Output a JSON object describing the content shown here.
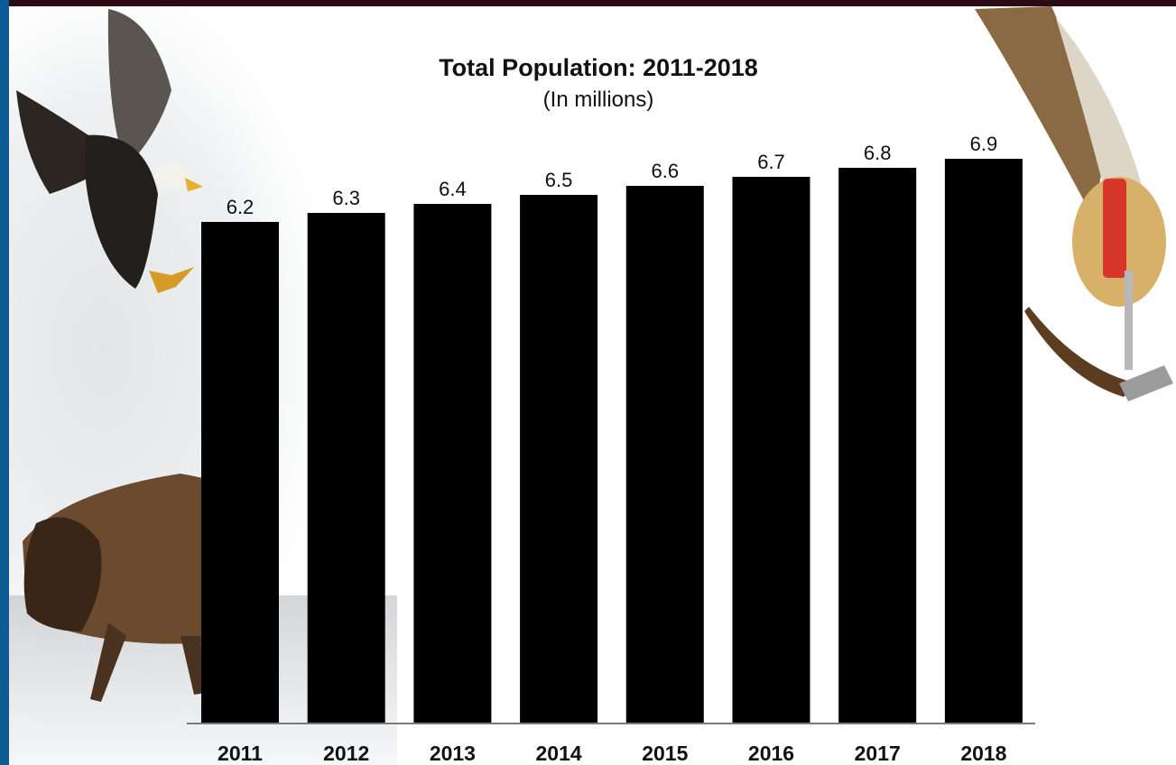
{
  "colors": {
    "top_band": "#2d0b12",
    "left_band": "#0d5b95",
    "bar": "#000000",
    "axis": "#7a7a7a"
  },
  "decorations": [
    "eagle-illustration",
    "bison-illustration",
    "feather-rattle-illustration",
    "misty-background"
  ],
  "chart_data": {
    "type": "bar",
    "title": "Total Population: 2011-2018",
    "subtitle": "(In millions)",
    "xlabel": "",
    "ylabel": "",
    "categories": [
      "2011",
      "2012",
      "2013",
      "2014",
      "2015",
      "2016",
      "2017",
      "2018"
    ],
    "values": [
      6.2,
      6.3,
      6.4,
      6.5,
      6.6,
      6.7,
      6.8,
      6.9
    ],
    "value_labels": [
      "6.2",
      "6.3",
      "6.4",
      "6.5",
      "6.6",
      "6.7",
      "6.8",
      "6.9"
    ],
    "ylim": [
      0,
      6.9
    ],
    "grid": false,
    "legend": "none",
    "data_labels": "above bars"
  }
}
